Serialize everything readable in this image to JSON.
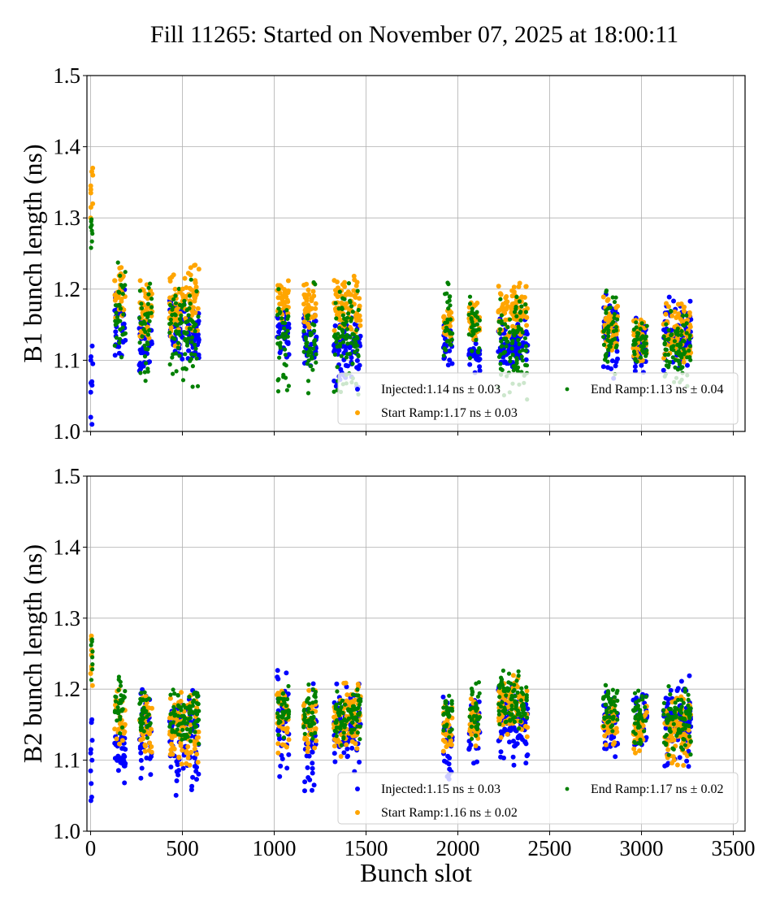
{
  "figure": {
    "title": "Fill 11265: Started on November 07, 2025 at 18:00:11"
  },
  "chart_data": [
    {
      "type": "scatter",
      "panel": "top",
      "title": "",
      "xlabel": "",
      "ylabel": "B1 bunch length (ns)",
      "xlim": [
        -20,
        3564
      ],
      "ylim": [
        1.0,
        1.5
      ],
      "grid": true,
      "xticks": [
        0,
        500,
        1000,
        1500,
        2000,
        2500,
        3000,
        3500
      ],
      "xtick_labels_visible": false,
      "yticks": [
        1.0,
        1.1,
        1.2,
        1.3,
        1.4,
        1.5
      ],
      "ytick_labels": [
        "1.0",
        "1.1",
        "1.2",
        "1.3",
        "1.4",
        "1.5"
      ],
      "legend": {
        "placement": "lower-right",
        "columns": 2,
        "entries": [
          {
            "name": "Injected",
            "label": "Injected:1.14 ns ± 0.03",
            "color": "#0000ff",
            "mean": 1.14,
            "std": 0.03
          },
          {
            "name": "Start Ramp",
            "label": "Start Ramp:1.17 ns ± 0.03",
            "color": "#ffa500",
            "mean": 1.17,
            "std": 0.03
          },
          {
            "name": "End Ramp",
            "label": "End Ramp:1.13 ns ± 0.04",
            "color": "#008000",
            "mean": 1.13,
            "std": 0.04
          }
        ]
      },
      "pilot": {
        "slot_range": [
          0,
          12
        ],
        "Injected": [
          1.01,
          1.02,
          1.055,
          1.065,
          1.068,
          1.07,
          1.095,
          1.1,
          1.105,
          1.12
        ],
        "Start Ramp": [
          1.3,
          1.315,
          1.32,
          1.335,
          1.34,
          1.345,
          1.36,
          1.365,
          1.37
        ],
        "End Ramp": [
          1.258,
          1.267,
          1.278,
          1.282,
          1.287,
          1.29,
          1.295,
          1.298
        ]
      },
      "trains": [
        {
          "x": [
            130,
            190
          ],
          "Injected": [
            1.09,
            1.2
          ],
          "Start Ramp": [
            1.14,
            1.24
          ],
          "End Ramp": [
            1.09,
            1.24
          ]
        },
        {
          "x": [
            265,
            335
          ],
          "Injected": [
            1.07,
            1.17
          ],
          "Start Ramp": [
            1.11,
            1.22
          ],
          "End Ramp": [
            1.07,
            1.22
          ]
        },
        {
          "x": [
            430,
            500
          ],
          "Injected": [
            1.1,
            1.19
          ],
          "Start Ramp": [
            1.12,
            1.22
          ],
          "End Ramp": [
            1.08,
            1.23
          ]
        },
        {
          "x": [
            500,
            590
          ],
          "Injected": [
            1.1,
            1.18
          ],
          "Start Ramp": [
            1.14,
            1.24
          ],
          "End Ramp": [
            1.06,
            1.22
          ]
        },
        {
          "x": [
            1015,
            1080
          ],
          "Injected": [
            1.1,
            1.17
          ],
          "Start Ramp": [
            1.15,
            1.22
          ],
          "End Ramp": [
            1.04,
            1.23
          ]
        },
        {
          "x": [
            1160,
            1230
          ],
          "Injected": [
            1.09,
            1.17
          ],
          "Start Ramp": [
            1.14,
            1.21
          ],
          "End Ramp": [
            1.04,
            1.21
          ]
        },
        {
          "x": [
            1325,
            1470
          ],
          "Injected": [
            1.06,
            1.16
          ],
          "Start Ramp": [
            1.13,
            1.22
          ],
          "End Ramp": [
            1.05,
            1.21
          ]
        },
        {
          "x": [
            1920,
            1970
          ],
          "Injected": [
            1.09,
            1.15
          ],
          "Start Ramp": [
            1.12,
            1.18
          ],
          "End Ramp": [
            1.09,
            1.22
          ]
        },
        {
          "x": [
            2060,
            2120
          ],
          "Injected": [
            1.08,
            1.15
          ],
          "Start Ramp": [
            1.12,
            1.19
          ],
          "End Ramp": [
            1.08,
            1.2
          ]
        },
        {
          "x": [
            2220,
            2380
          ],
          "Injected": [
            1.09,
            1.16
          ],
          "Start Ramp": [
            1.13,
            1.21
          ],
          "End Ramp": [
            1.04,
            1.2
          ]
        },
        {
          "x": [
            2790,
            2870
          ],
          "Injected": [
            1.07,
            1.2
          ],
          "Start Ramp": [
            1.11,
            1.19
          ],
          "End Ramp": [
            1.08,
            1.2
          ]
        },
        {
          "x": [
            2955,
            3030
          ],
          "Injected": [
            1.08,
            1.16
          ],
          "Start Ramp": [
            1.09,
            1.16
          ],
          "End Ramp": [
            1.09,
            1.16
          ]
        },
        {
          "x": [
            3120,
            3270
          ],
          "Injected": [
            1.08,
            1.19
          ],
          "Start Ramp": [
            1.09,
            1.18
          ],
          "End Ramp": [
            1.06,
            1.17
          ]
        }
      ]
    },
    {
      "type": "scatter",
      "panel": "bottom",
      "title": "",
      "xlabel": "Bunch slot",
      "ylabel": "B2 bunch length (ns)",
      "xlim": [
        -20,
        3564
      ],
      "ylim": [
        1.0,
        1.5
      ],
      "grid": true,
      "xticks": [
        0,
        500,
        1000,
        1500,
        2000,
        2500,
        3000,
        3500
      ],
      "xtick_labels": [
        "0",
        "500",
        "1000",
        "1500",
        "2000",
        "2500",
        "3000",
        "3500"
      ],
      "yticks": [
        1.0,
        1.1,
        1.2,
        1.3,
        1.4,
        1.5
      ],
      "ytick_labels": [
        "1.0",
        "1.1",
        "1.2",
        "1.3",
        "1.4",
        "1.5"
      ],
      "legend": {
        "placement": "lower-right",
        "columns": 2,
        "entries": [
          {
            "name": "Injected",
            "label": "Injected:1.15 ns ± 0.03",
            "color": "#0000ff",
            "mean": 1.15,
            "std": 0.03
          },
          {
            "name": "Start Ramp",
            "label": "Start Ramp:1.16 ns ± 0.02",
            "color": "#ffa500",
            "mean": 1.16,
            "std": 0.02
          },
          {
            "name": "End Ramp",
            "label": "End Ramp:1.17 ns ± 0.02",
            "color": "#008000",
            "mean": 1.17,
            "std": 0.02
          }
        ]
      },
      "pilot": {
        "slot_range": [
          0,
          12
        ],
        "Injected": [
          1.043,
          1.048,
          1.067,
          1.085,
          1.1,
          1.11,
          1.115,
          1.128,
          1.153,
          1.157
        ],
        "Start Ramp": [
          1.205,
          1.222,
          1.228,
          1.232,
          1.248,
          1.255,
          1.27,
          1.275
        ],
        "End Ramp": [
          1.213,
          1.228,
          1.235,
          1.245,
          1.253,
          1.262,
          1.267,
          1.27
        ]
      },
      "trains": [
        {
          "x": [
            130,
            190
          ],
          "Injected": [
            1.06,
            1.15
          ],
          "Start Ramp": [
            1.11,
            1.2
          ],
          "End Ramp": [
            1.13,
            1.22
          ]
        },
        {
          "x": [
            265,
            335
          ],
          "Injected": [
            1.07,
            1.2
          ],
          "Start Ramp": [
            1.11,
            1.19
          ],
          "End Ramp": [
            1.13,
            1.2
          ]
        },
        {
          "x": [
            430,
            590
          ],
          "Injected": [
            1.05,
            1.2
          ],
          "Start Ramp": [
            1.09,
            1.2
          ],
          "End Ramp": [
            1.12,
            1.2
          ]
        },
        {
          "x": [
            1015,
            1080
          ],
          "Injected": [
            1.07,
            1.23
          ],
          "Start Ramp": [
            1.11,
            1.21
          ],
          "End Ramp": [
            1.13,
            1.21
          ]
        },
        {
          "x": [
            1160,
            1230
          ],
          "Injected": [
            1.05,
            1.22
          ],
          "Start Ramp": [
            1.1,
            1.2
          ],
          "End Ramp": [
            1.13,
            1.21
          ]
        },
        {
          "x": [
            1325,
            1470
          ],
          "Injected": [
            1.08,
            1.21
          ],
          "Start Ramp": [
            1.1,
            1.21
          ],
          "End Ramp": [
            1.12,
            1.2
          ]
        },
        {
          "x": [
            1920,
            1970
          ],
          "Injected": [
            1.07,
            1.19
          ],
          "Start Ramp": [
            1.11,
            1.18
          ],
          "End Ramp": [
            1.13,
            1.2
          ]
        },
        {
          "x": [
            2060,
            2120
          ],
          "Injected": [
            1.09,
            1.2
          ],
          "Start Ramp": [
            1.12,
            1.2
          ],
          "End Ramp": [
            1.13,
            1.21
          ]
        },
        {
          "x": [
            2220,
            2380
          ],
          "Injected": [
            1.09,
            1.21
          ],
          "Start Ramp": [
            1.13,
            1.22
          ],
          "End Ramp": [
            1.14,
            1.23
          ]
        },
        {
          "x": [
            2790,
            2870
          ],
          "Injected": [
            1.1,
            1.2
          ],
          "Start Ramp": [
            1.12,
            1.19
          ],
          "End Ramp": [
            1.13,
            1.22
          ]
        },
        {
          "x": [
            2955,
            3030
          ],
          "Injected": [
            1.1,
            1.2
          ],
          "Start Ramp": [
            1.11,
            1.18
          ],
          "End Ramp": [
            1.12,
            1.2
          ]
        },
        {
          "x": [
            3120,
            3270
          ],
          "Injected": [
            1.09,
            1.22
          ],
          "Start Ramp": [
            1.09,
            1.19
          ],
          "End Ramp": [
            1.1,
            1.21
          ]
        }
      ]
    }
  ]
}
